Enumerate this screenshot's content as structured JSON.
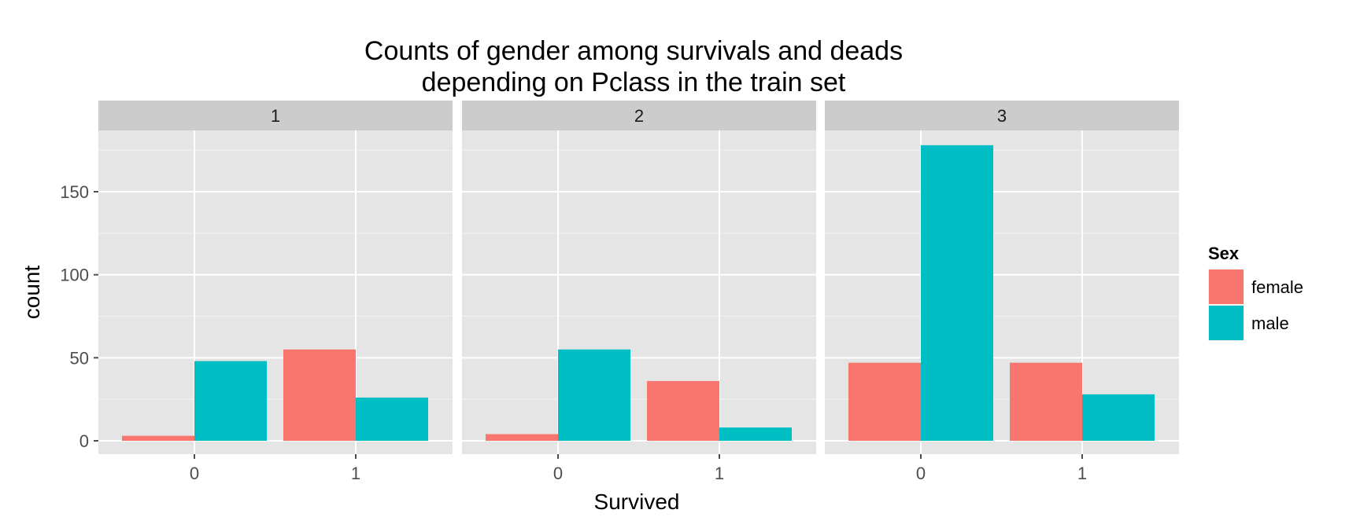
{
  "chart_data": {
    "type": "bar",
    "title_lines": [
      "Counts of gender among survivals and deads",
      "depending on Pclass in the train set"
    ],
    "xlabel": "Survived",
    "ylabel": "count",
    "ylim": [
      0,
      190
    ],
    "y_ticks": [
      0,
      50,
      100,
      150
    ],
    "categories": [
      "0",
      "1"
    ],
    "grid": true,
    "legend": {
      "title": "Sex",
      "position": "right",
      "entries": [
        "female",
        "male"
      ]
    },
    "colors": {
      "female": "#F8766D",
      "male": "#00BFC4",
      "panel_bg": "#E5E5E5",
      "strip_bg": "#CCCCCC"
    },
    "facets": [
      {
        "label": "1",
        "series": [
          {
            "name": "female",
            "values": [
              3,
              55
            ]
          },
          {
            "name": "male",
            "values": [
              48,
              26
            ]
          }
        ]
      },
      {
        "label": "2",
        "series": [
          {
            "name": "female",
            "values": [
              4,
              36
            ]
          },
          {
            "name": "male",
            "values": [
              55,
              8
            ]
          }
        ]
      },
      {
        "label": "3",
        "series": [
          {
            "name": "female",
            "values": [
              47,
              47
            ]
          },
          {
            "name": "male",
            "values": [
              178,
              28
            ]
          }
        ]
      }
    ]
  }
}
